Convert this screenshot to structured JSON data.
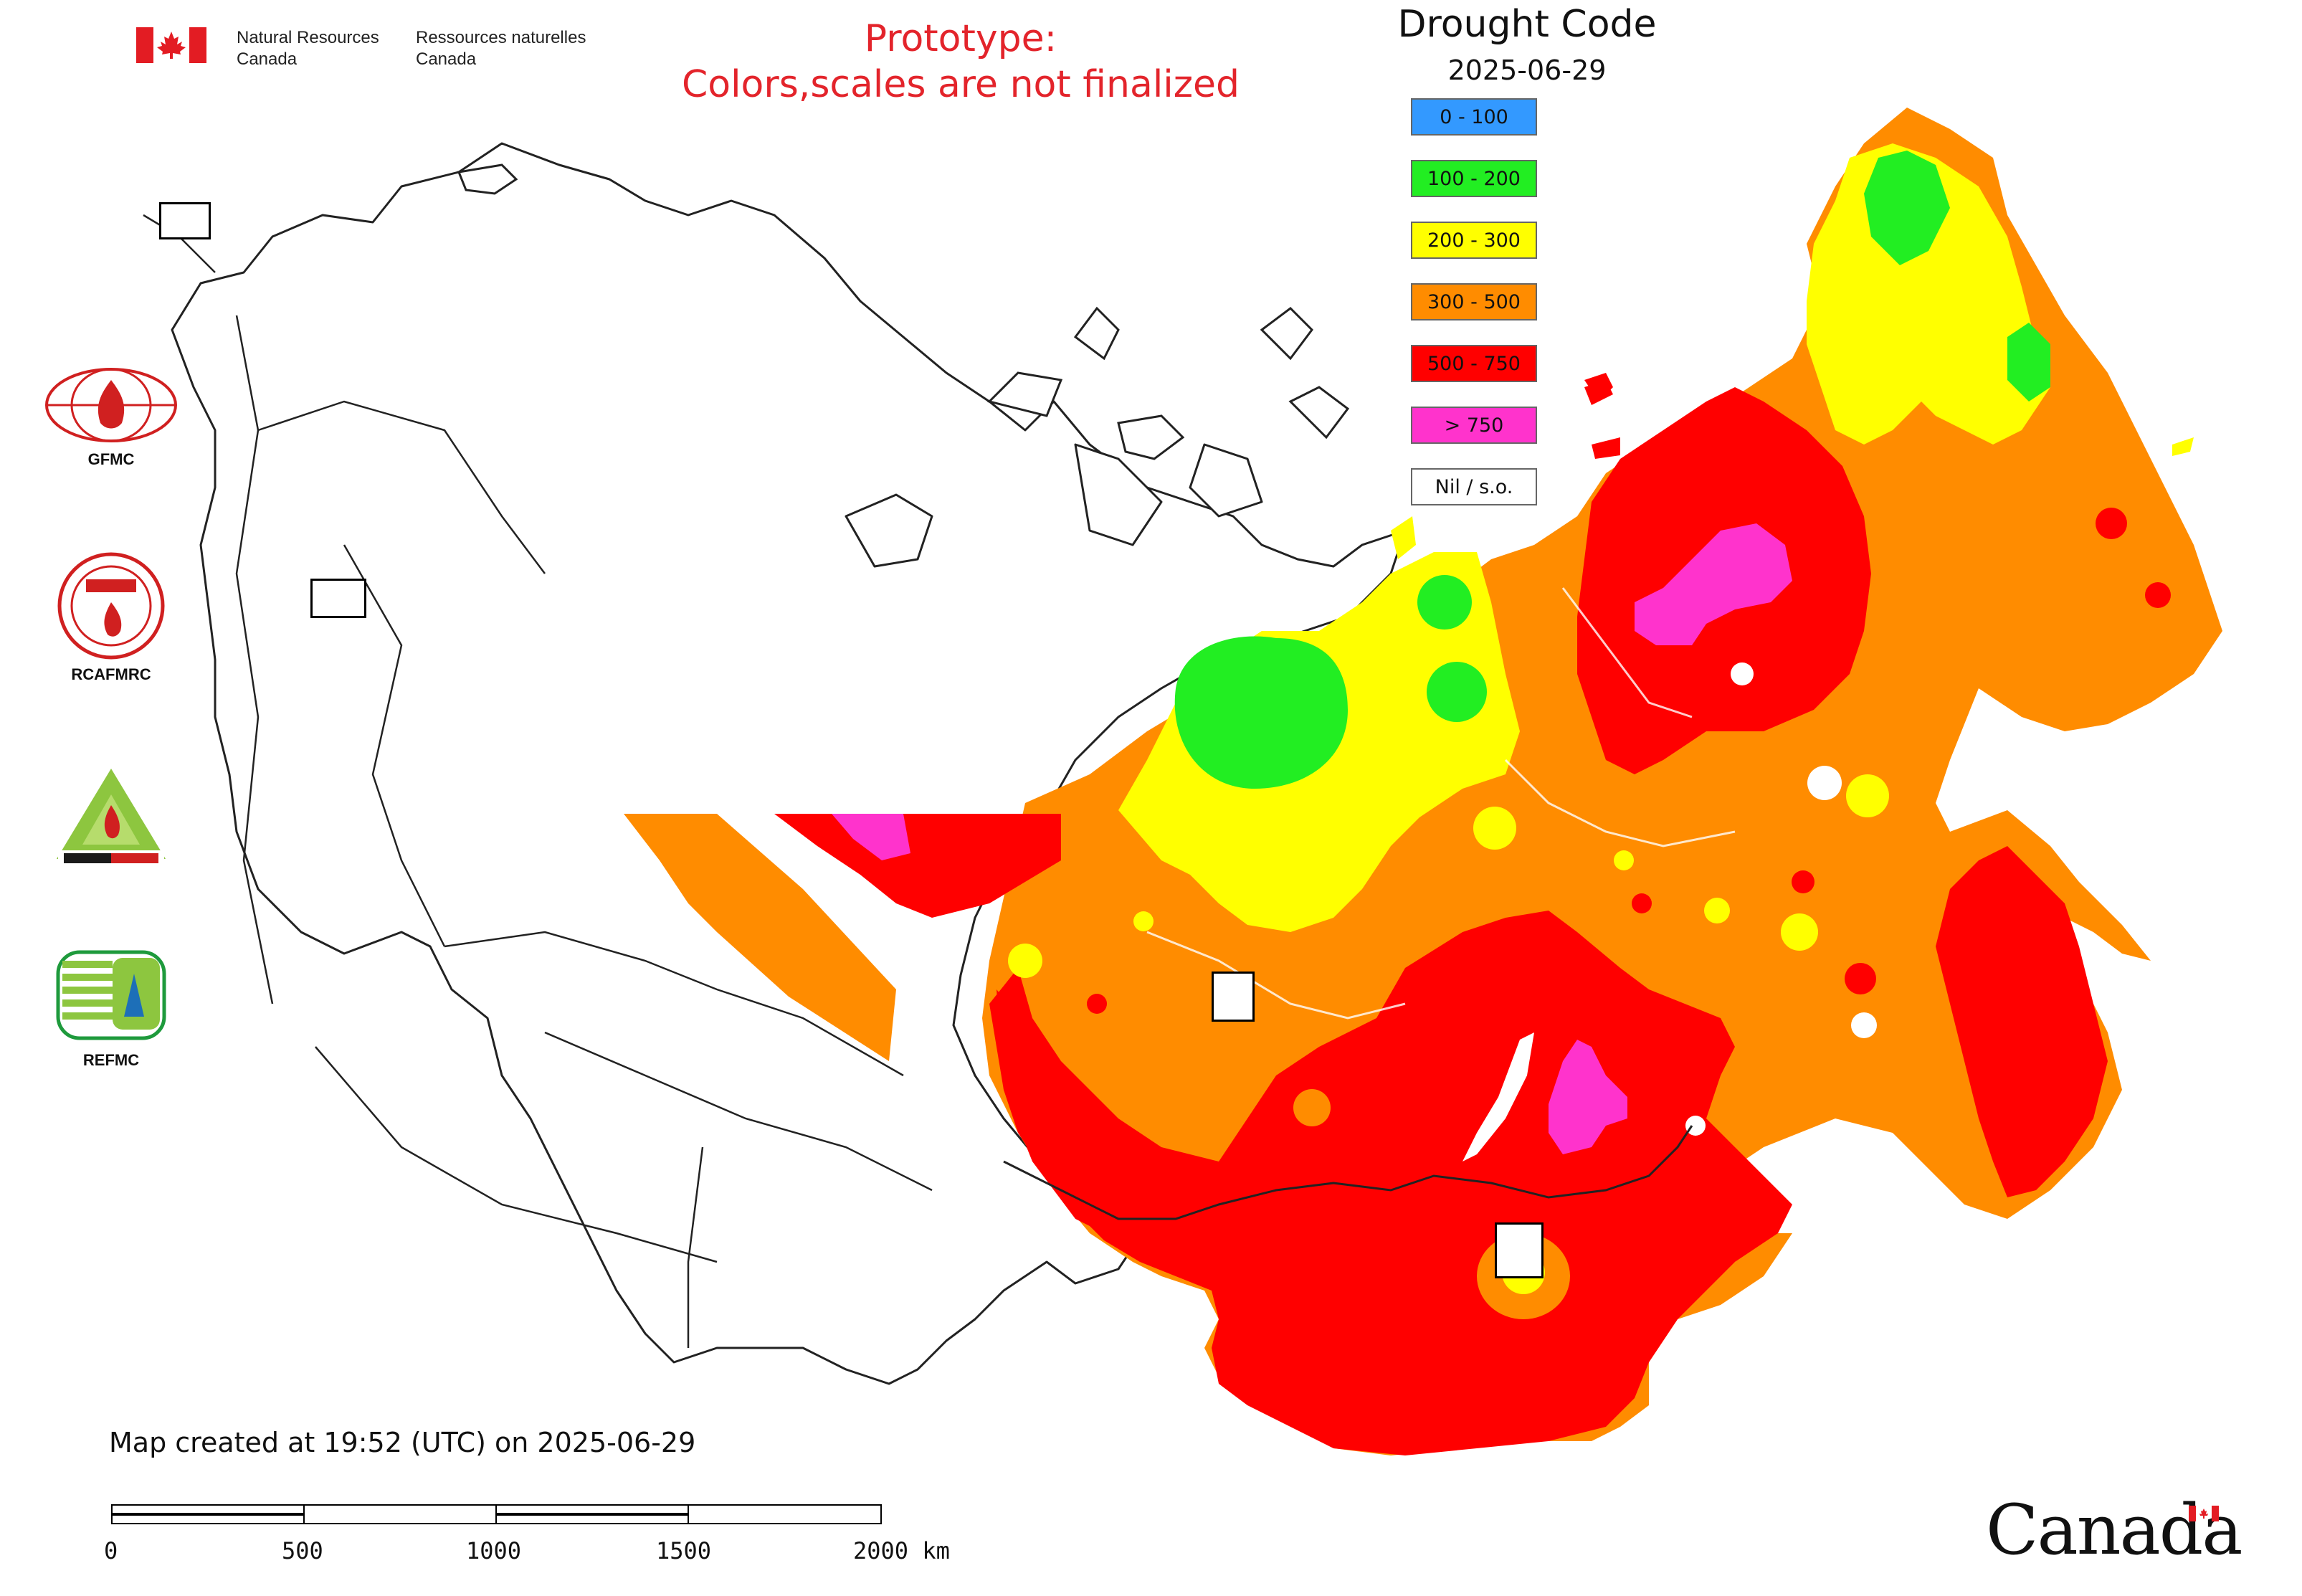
{
  "header": {
    "name_en": "Natural Resources Canada",
    "name_fr": "Ressources naturelles Canada"
  },
  "notice": {
    "line1": "Prototype:",
    "line2": "Colors,scales are not finalized"
  },
  "legend": {
    "title": "Drought Code",
    "date": "2025-06-29",
    "items": [
      {
        "label": "0 - 100",
        "color": "#3399ff"
      },
      {
        "label": "100 - 200",
        "color": "#22ee22"
      },
      {
        "label": "200 - 300",
        "color": "#ffff00"
      },
      {
        "label": "300 - 500",
        "color": "#ff8c00"
      },
      {
        "label": "500 - 750",
        "color": "#ff0000"
      },
      {
        "label": "> 750",
        "color": "#ff33cc"
      },
      {
        "label": "Nil / s.o.",
        "color": "#ffffff"
      }
    ]
  },
  "organizations": [
    {
      "label": "GFMC",
      "icon": "gfmc-logo-icon"
    },
    {
      "label": "RCAFMRC",
      "icon": "rcafmrc-logo-icon"
    },
    {
      "label": "",
      "icon": "reefmc-logo-icon"
    },
    {
      "label": "REFMC",
      "icon": "refmc-logo-icon"
    }
  ],
  "footer": {
    "created": "Map created at 19:52 (UTC) on 2025-06-29",
    "scale_labels": [
      "0",
      "500",
      "1000",
      "1500",
      "2000 km"
    ],
    "wordmark": "Canada"
  },
  "colors": {
    "dc_0_100": "#3399ff",
    "dc_100_200": "#22ee22",
    "dc_200_300": "#ffff00",
    "dc_300_500": "#ff8c00",
    "dc_500_750": "#ff0000",
    "dc_over_750": "#ff33cc",
    "brand_red": "#e31c23",
    "notice_red": "#e3242b"
  }
}
